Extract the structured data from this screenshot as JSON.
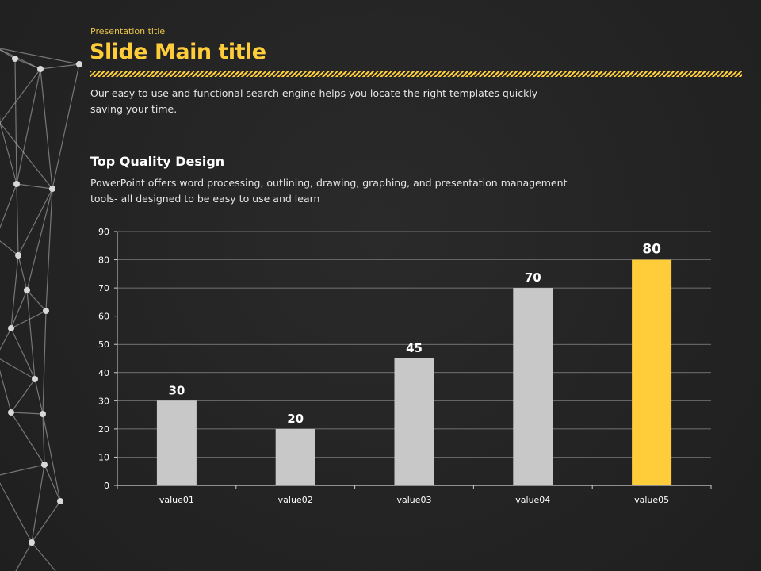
{
  "header": {
    "presentation_title": "Presentation title",
    "main_title": "Slide Main title",
    "description": "Our easy to use and functional search engine helps you locate the right templates quickly saving your time."
  },
  "section": {
    "title": "Top Quality Design",
    "description": "PowerPoint offers word processing, outlining, drawing, graphing, and presentation management tools- all designed to be easy to use and learn"
  },
  "colors": {
    "accent": "#ffcd3a",
    "bar": "#c8c8c8"
  },
  "chart_data": {
    "type": "bar",
    "title": "",
    "xlabel": "",
    "ylabel": "",
    "categories": [
      "value01",
      "value02",
      "value03",
      "value04",
      "value05"
    ],
    "values": [
      30,
      20,
      45,
      70,
      80
    ],
    "highlight_index": 4,
    "ylim": [
      0,
      90
    ],
    "yticks": [
      0,
      10,
      20,
      30,
      40,
      50,
      60,
      70,
      80,
      90
    ],
    "grid": true
  }
}
